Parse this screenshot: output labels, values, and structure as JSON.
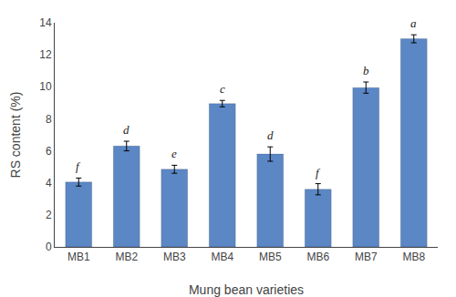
{
  "chart_data": {
    "type": "bar",
    "categories": [
      "MB1",
      "MB2",
      "MB3",
      "MB4",
      "MB5",
      "MB6",
      "MB7",
      "MB8"
    ],
    "values": [
      4.05,
      6.3,
      4.85,
      8.95,
      5.8,
      3.6,
      9.95,
      13.0
    ],
    "errors": [
      0.25,
      0.3,
      0.25,
      0.2,
      0.45,
      0.35,
      0.35,
      0.25
    ],
    "annotations": [
      "f",
      "d",
      "e",
      "c",
      "d",
      "f",
      "b",
      "a"
    ],
    "color": "#5B87C5",
    "xlabel": "Mung bean varieties",
    "ylabel": "RS content (%)",
    "ylim": [
      0,
      14
    ],
    "yticks": [
      0,
      2,
      4,
      6,
      8,
      10,
      12,
      14
    ],
    "grid": false
  }
}
